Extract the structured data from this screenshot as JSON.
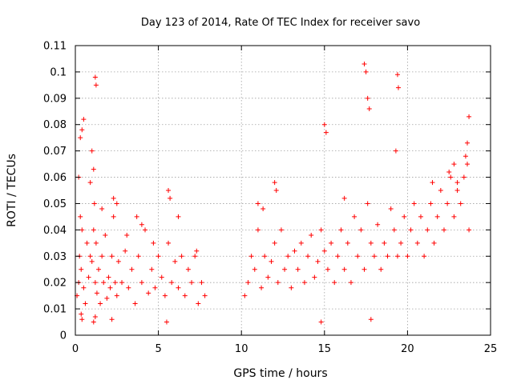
{
  "chart_data": {
    "type": "scatter",
    "title": "Day 123 of 2014, Rate Of TEC Index for receiver savo",
    "xlabel": "GPS time / hours",
    "ylabel": "ROTI / TECUs",
    "xlim": [
      0,
      25
    ],
    "ylim": [
      0,
      0.11
    ],
    "x_ticks": [
      "0",
      "5",
      "10",
      "15",
      "20",
      "25"
    ],
    "y_ticks": [
      "0",
      "0.01",
      "0.02",
      "0.03",
      "0.04",
      "0.05",
      "0.06",
      "0.07",
      "0.08",
      "0.09",
      "0.1",
      "0.11"
    ],
    "grid": true,
    "marker": "plus",
    "color": "#ff0000",
    "series": [
      {
        "x": [
          0.1,
          0.2,
          0.25,
          0.3,
          0.35,
          0.4,
          0.5,
          0.6,
          0.7,
          0.8,
          0.9,
          1.0,
          1.1,
          1.15,
          1.2,
          1.25,
          1.3,
          1.4,
          1.5,
          1.6,
          1.7,
          1.8,
          1.9,
          2.0,
          2.1,
          2.2,
          2.3,
          2.4,
          2.5,
          2.6,
          2.8,
          3.0,
          3.2,
          3.4,
          3.6,
          3.8,
          4.0,
          4.2,
          4.4,
          4.6,
          4.8,
          5.0,
          5.2,
          5.4,
          5.6,
          5.8,
          6.0,
          6.2,
          6.4,
          6.6,
          6.8,
          7.0,
          7.2,
          7.4,
          7.6,
          7.8,
          0.3,
          0.4,
          0.5,
          1.2,
          1.25,
          1.0,
          1.1,
          2.3,
          2.5,
          3.7,
          4.0,
          5.6,
          5.7,
          6.2,
          0.2,
          0.9,
          1.6,
          3.1,
          4.7,
          7.3,
          0.35,
          0.4,
          1.1,
          1.2,
          2.2,
          5.5
        ],
        "y": [
          0.015,
          0.02,
          0.03,
          0.045,
          0.025,
          0.04,
          0.018,
          0.012,
          0.035,
          0.022,
          0.03,
          0.028,
          0.04,
          0.05,
          0.02,
          0.035,
          0.016,
          0.025,
          0.012,
          0.03,
          0.02,
          0.038,
          0.014,
          0.022,
          0.018,
          0.03,
          0.045,
          0.02,
          0.015,
          0.028,
          0.02,
          0.032,
          0.018,
          0.025,
          0.012,
          0.03,
          0.02,
          0.04,
          0.016,
          0.025,
          0.018,
          0.03,
          0.022,
          0.015,
          0.035,
          0.02,
          0.028,
          0.018,
          0.03,
          0.015,
          0.025,
          0.02,
          0.03,
          0.012,
          0.02,
          0.015,
          0.075,
          0.078,
          0.082,
          0.098,
          0.095,
          0.07,
          0.063,
          0.052,
          0.05,
          0.045,
          0.042,
          0.055,
          0.052,
          0.045,
          0.06,
          0.058,
          0.048,
          0.038,
          0.035,
          0.032,
          0.008,
          0.006,
          0.005,
          0.007,
          0.006,
          0.005
        ],
        "y_err_note": ""
      },
      {
        "x": [
          10.2,
          10.4,
          10.6,
          10.8,
          11.0,
          11.2,
          11.4,
          11.6,
          11.8,
          12.0,
          12.2,
          12.4,
          12.6,
          12.8,
          13.0,
          13.2,
          13.4,
          13.6,
          13.8,
          14.0,
          14.2,
          14.4,
          14.6,
          14.8,
          15.0,
          15.2,
          15.4,
          15.6,
          15.8,
          16.0,
          16.2,
          16.4,
          16.6,
          16.8,
          17.0,
          17.2,
          17.4,
          17.6,
          17.8,
          18.0,
          18.2,
          18.4,
          18.6,
          18.8,
          19.0,
          19.2,
          19.4,
          19.6,
          19.8,
          20.0,
          20.2,
          20.4,
          20.6,
          20.8,
          21.0,
          21.2,
          21.4,
          21.6,
          21.8,
          22.0,
          22.2,
          22.4,
          22.6,
          22.8,
          23.0,
          23.2,
          23.4,
          23.6,
          23.7,
          12.0,
          12.1,
          15.0,
          15.1,
          17.4,
          17.5,
          17.6,
          17.7,
          19.4,
          19.45,
          19.3,
          23.7,
          23.6,
          23.5,
          11.0,
          11.3,
          16.2,
          21.5,
          22.5,
          22.8,
          23.0,
          14.8,
          17.8
        ],
        "y": [
          0.015,
          0.02,
          0.03,
          0.025,
          0.04,
          0.018,
          0.03,
          0.022,
          0.028,
          0.035,
          0.02,
          0.04,
          0.025,
          0.03,
          0.018,
          0.032,
          0.025,
          0.035,
          0.02,
          0.03,
          0.038,
          0.022,
          0.028,
          0.04,
          0.032,
          0.025,
          0.035,
          0.02,
          0.03,
          0.04,
          0.025,
          0.035,
          0.02,
          0.045,
          0.03,
          0.04,
          0.025,
          0.05,
          0.035,
          0.03,
          0.042,
          0.025,
          0.035,
          0.03,
          0.048,
          0.04,
          0.03,
          0.035,
          0.045,
          0.03,
          0.04,
          0.05,
          0.035,
          0.045,
          0.03,
          0.04,
          0.05,
          0.035,
          0.045,
          0.055,
          0.04,
          0.05,
          0.06,
          0.045,
          0.055,
          0.05,
          0.06,
          0.065,
          0.04,
          0.058,
          0.055,
          0.08,
          0.077,
          0.103,
          0.1,
          0.09,
          0.086,
          0.099,
          0.094,
          0.07,
          0.083,
          0.073,
          0.068,
          0.05,
          0.048,
          0.052,
          0.058,
          0.062,
          0.065,
          0.058,
          0.005,
          0.006
        ],
        "y_err_note": ""
      }
    ]
  }
}
